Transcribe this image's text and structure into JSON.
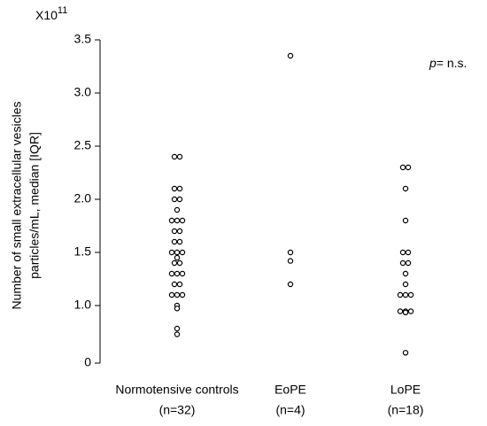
{
  "chart_data": {
    "type": "strip",
    "y_multiplier": "X10",
    "y_multiplier_exp": "11",
    "y_label": [
      "Number of small extracellular vesicles",
      "particles/mL, median [IQR]"
    ],
    "annotation_italic": "p",
    "annotation": "= n.s.",
    "categories": [
      "Normotensive controls",
      "EoPE",
      "LoPE"
    ],
    "category_counts": [
      "(n=32)",
      "(n=4)",
      "(n=18)"
    ],
    "ylim": [
      0,
      3.5
    ],
    "yticks": [
      0,
      {
        "value": 1,
        "label": "1.0"
      },
      1.5,
      {
        "value": 2,
        "label": "2.0"
      },
      2.5,
      {
        "value": 3,
        "label": "3.0"
      },
      3.5
    ],
    "axis_break": true,
    "marker_color": "#000000",
    "groups": [
      [
        2.4,
        2.4,
        2.1,
        2.1,
        2.0,
        2.0,
        1.9,
        1.8,
        1.8,
        1.8,
        1.7,
        1.7,
        1.6,
        1.6,
        1.5,
        1.5,
        1.5,
        1.45,
        1.4,
        1.4,
        1.3,
        1.3,
        1.3,
        1.2,
        1.2,
        1.1,
        1.1,
        1.1,
        1.0,
        0.95,
        0.6,
        0.5
      ],
      [
        3.35,
        1.5,
        1.42,
        1.2
      ],
      [
        2.3,
        2.3,
        2.1,
        1.8,
        1.5,
        1.5,
        1.4,
        1.4,
        1.3,
        1.2,
        1.1,
        1.1,
        1.1,
        0.9,
        0.9,
        0.9,
        0.88,
        0.18
      ]
    ]
  }
}
